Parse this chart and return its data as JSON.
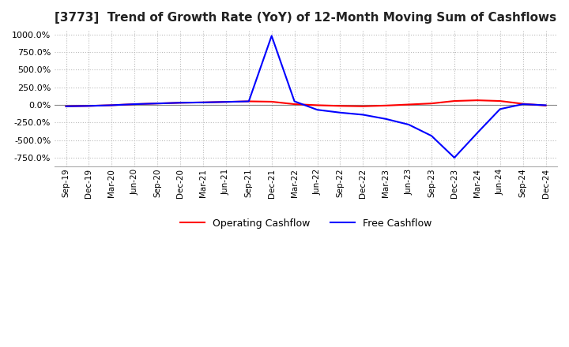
{
  "title": "[3773]  Trend of Growth Rate (YoY) of 12-Month Moving Sum of Cashflows",
  "title_fontsize": 11,
  "ylim": [
    -875,
    1062.5
  ],
  "yticks": [
    -750,
    -500,
    -250,
    0,
    250,
    500,
    750,
    1000
  ],
  "background_color": "#ffffff",
  "grid_color": "#bbbbbb",
  "grid_style": "dotted",
  "legend_labels": [
    "Operating Cashflow",
    "Free Cashflow"
  ],
  "line_colors": [
    "#ff0000",
    "#0000ff"
  ],
  "x_labels": [
    "Sep-19",
    "Dec-19",
    "Mar-20",
    "Jun-20",
    "Sep-20",
    "Dec-20",
    "Mar-21",
    "Jun-21",
    "Sep-21",
    "Dec-21",
    "Mar-22",
    "Jun-22",
    "Sep-22",
    "Dec-22",
    "Mar-23",
    "Jun-23",
    "Sep-23",
    "Dec-23",
    "Mar-24",
    "Jun-24",
    "Sep-24",
    "Dec-24"
  ],
  "operating_cashflow": [
    -20,
    -15,
    -5,
    10,
    20,
    30,
    35,
    42,
    50,
    45,
    10,
    -5,
    -15,
    -20,
    -10,
    5,
    20,
    55,
    65,
    55,
    15,
    -10
  ],
  "free_cashflow": [
    -20,
    -15,
    -5,
    10,
    20,
    30,
    35,
    42,
    50,
    980,
    50,
    -70,
    -110,
    -140,
    -200,
    -280,
    -440,
    -750,
    -400,
    -60,
    10,
    -5
  ]
}
